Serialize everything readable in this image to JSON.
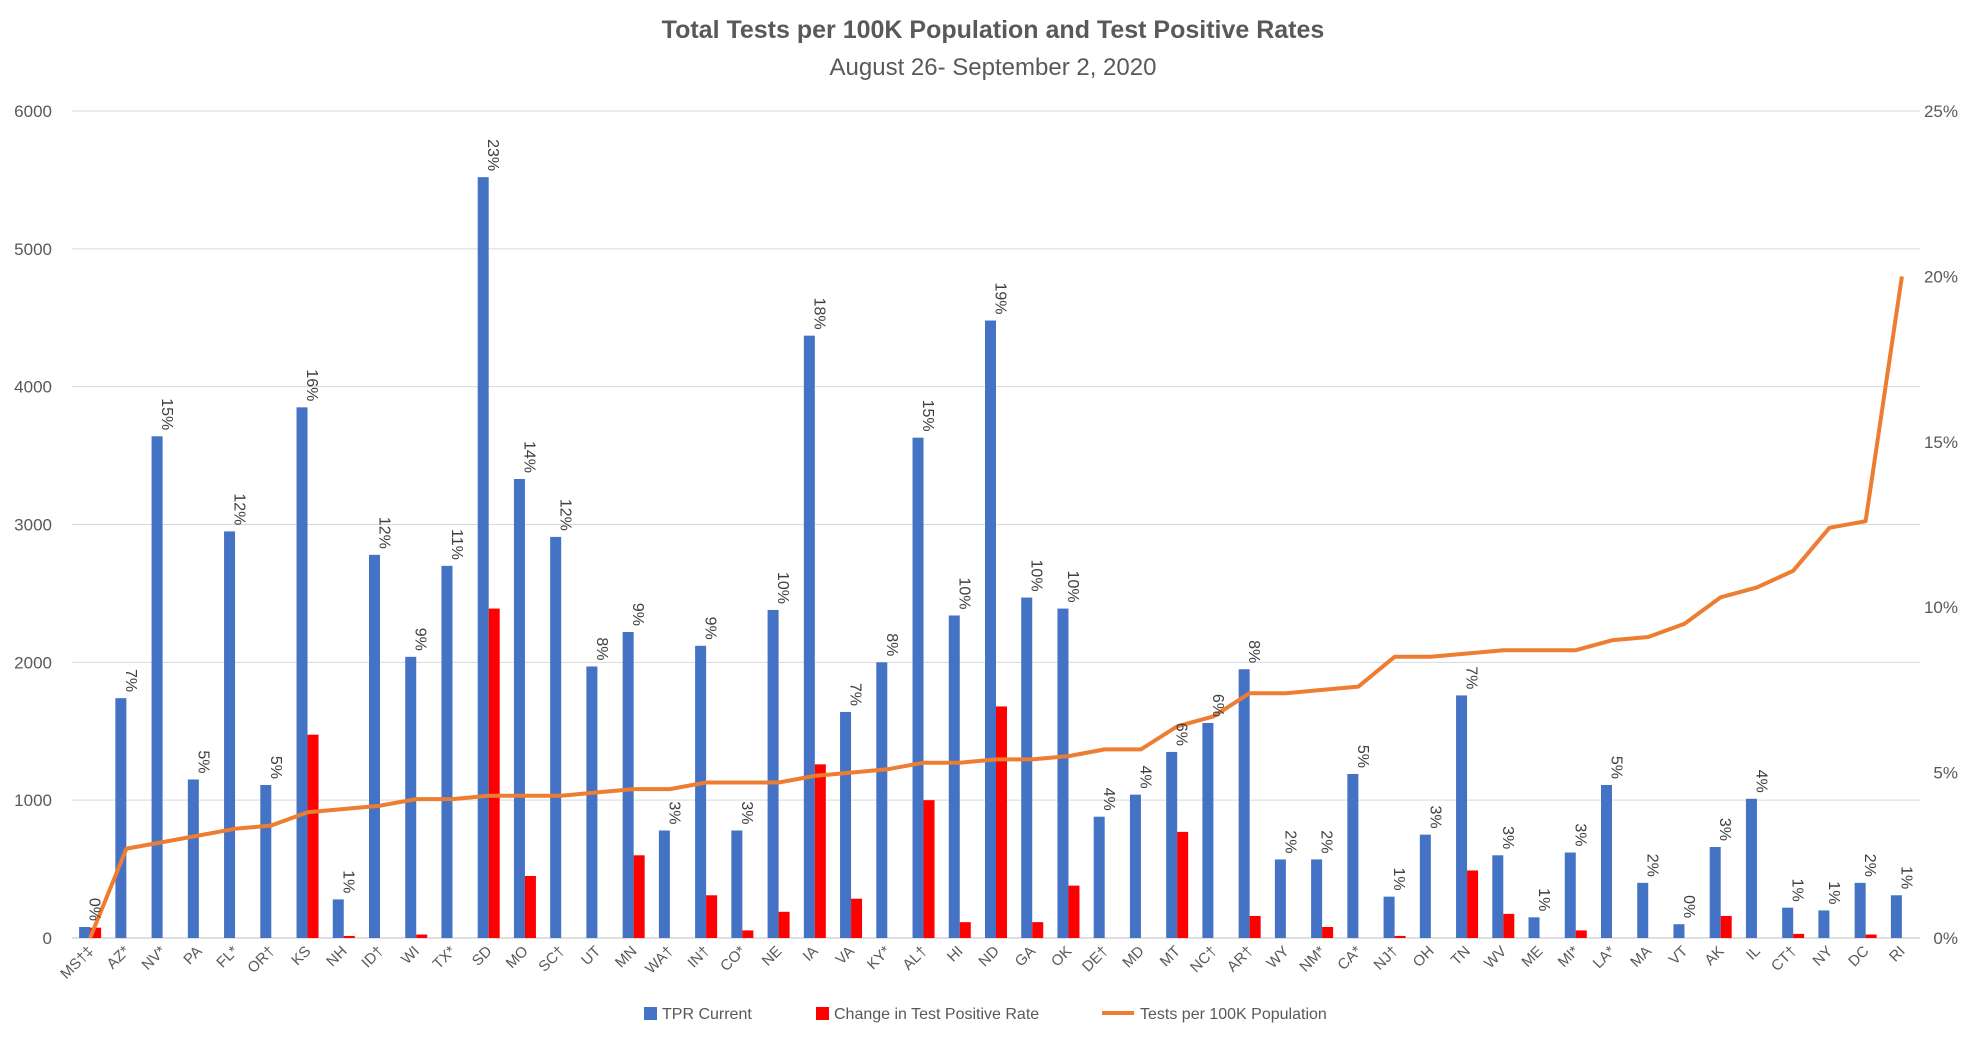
{
  "chart_data": {
    "type": "bar",
    "title": "Total Tests per 100K Population and Test Positive Rates",
    "subtitle": "August 26- September 2, 2020",
    "categories": [
      "MS†‡",
      "AZ*",
      "NV*",
      "PA",
      "FL*",
      "OR†",
      "KS",
      "NH",
      "ID†",
      "WI",
      "TX*",
      "SD",
      "MO",
      "SC†",
      "UT",
      "MN",
      "WA†",
      "IN†",
      "CO*",
      "NE",
      "IA",
      "VA",
      "KY*",
      "AL†",
      "HI",
      "ND",
      "GA",
      "OK",
      "DE†",
      "MD",
      "MT",
      "NC†",
      "AR†",
      "WY",
      "NM*",
      "CA*",
      "NJ†",
      "OH",
      "TN",
      "WV",
      "ME",
      "MI*",
      "LA*",
      "MA",
      "VT",
      "AK",
      "IL",
      "CT†",
      "NY",
      "DC",
      "RI"
    ],
    "ylim_left": [
      0,
      6000
    ],
    "left_ticks": [
      0,
      1000,
      2000,
      3000,
      4000,
      5000,
      6000
    ],
    "ylim_right": [
      0,
      25
    ],
    "right_ticks": [
      "0%",
      "5%",
      "10%",
      "15%",
      "20%",
      "25%"
    ],
    "series": [
      {
        "name": "TPR Current",
        "type": "bar",
        "axis": "left",
        "color": "#4472C4",
        "values": [
          80,
          1740,
          3640,
          1150,
          2950,
          1110,
          3850,
          280,
          2780,
          2040,
          2700,
          5520,
          3330,
          2910,
          1970,
          2220,
          780,
          2120,
          780,
          2380,
          4370,
          1640,
          2000,
          3630,
          2340,
          4480,
          2470,
          2390,
          880,
          1040,
          1350,
          1560,
          1950,
          570,
          570,
          1190,
          300,
          750,
          1760,
          600,
          150,
          620,
          1110,
          400,
          100,
          660,
          1010,
          220,
          200,
          400,
          310
        ],
        "labels": [
          "0%",
          "7%",
          "15%",
          "5%",
          "12%",
          "5%",
          "16%",
          "1%",
          "12%",
          "9%",
          "11%",
          "23%",
          "14%",
          "12%",
          "8%",
          "9%",
          "3%",
          "9%",
          "3%",
          "10%",
          "18%",
          "7%",
          "8%",
          "15%",
          "10%",
          "19%",
          "10%",
          "10%",
          "4%",
          "4%",
          "6%",
          "6%",
          "8%",
          "2%",
          "2%",
          "5%",
          "1%",
          "3%",
          "7%",
          "3%",
          "1%",
          "3%",
          "5%",
          "2%",
          "0%",
          "3%",
          "4%",
          "1%",
          "1%",
          "2%",
          "1%"
        ]
      },
      {
        "name": "Change in Test Positive Rate",
        "type": "bar",
        "axis": "left",
        "color": "#FF0000",
        "values": [
          75,
          0,
          0,
          0,
          0,
          0,
          1475,
          15,
          0,
          25,
          0,
          2390,
          450,
          0,
          0,
          600,
          0,
          310,
          55,
          190,
          1260,
          285,
          0,
          1000,
          115,
          1680,
          115,
          380,
          0,
          0,
          770,
          0,
          160,
          0,
          80,
          0,
          15,
          0,
          490,
          175,
          0,
          55,
          0,
          0,
          0,
          160,
          0,
          30,
          0,
          25,
          0
        ]
      },
      {
        "name": "Tests per 100K Population",
        "type": "line",
        "axis": "right",
        "color": "#ED7D31",
        "values": [
          0,
          2.7,
          2.9,
          3.1,
          3.3,
          3.4,
          3.8,
          3.9,
          4.0,
          4.2,
          4.2,
          4.3,
          4.3,
          4.3,
          4.4,
          4.5,
          4.5,
          4.7,
          4.7,
          4.7,
          4.9,
          5.0,
          5.1,
          5.3,
          5.3,
          5.4,
          5.4,
          5.5,
          5.7,
          5.7,
          6.4,
          6.7,
          7.4,
          7.4,
          7.5,
          7.6,
          8.5,
          8.5,
          8.6,
          8.7,
          8.7,
          8.7,
          9.0,
          9.1,
          9.5,
          10.3,
          10.6,
          11.1,
          12.4,
          12.6,
          20.0
        ]
      }
    ],
    "legend_position": "bottom",
    "grid": true
  }
}
